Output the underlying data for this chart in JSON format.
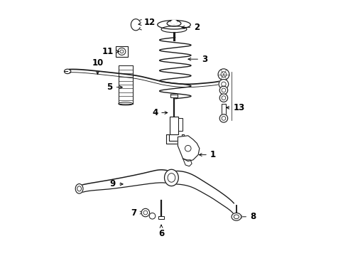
{
  "bg_color": "#ffffff",
  "line_color": "#1a1a1a",
  "label_color": "#000000",
  "lw": 0.9,
  "fs": 8.5,
  "parts_labels": {
    "1": [
      0.635,
      0.415,
      0.072,
      0.0
    ],
    "2": [
      0.555,
      0.895,
      0.075,
      0.0
    ],
    "3": [
      0.565,
      0.77,
      0.08,
      0.0
    ],
    "4": [
      0.36,
      0.545,
      -0.06,
      0.0
    ],
    "5": [
      0.285,
      0.61,
      -0.06,
      0.0
    ],
    "6": [
      0.445,
      0.095,
      0.0,
      -0.04
    ],
    "7": [
      0.365,
      0.115,
      -0.04,
      0.0
    ],
    "8": [
      0.775,
      0.065,
      0.065,
      0.0
    ],
    "9": [
      0.265,
      0.3,
      -0.045,
      0.0
    ],
    "10": [
      0.165,
      0.665,
      0.0,
      0.055
    ],
    "11": [
      0.295,
      0.815,
      -0.05,
      0.0
    ],
    "12": [
      0.395,
      0.915,
      0.055,
      0.01
    ],
    "13": [
      0.77,
      0.525,
      0.065,
      0.0
    ]
  }
}
